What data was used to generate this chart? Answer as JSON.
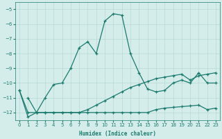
{
  "xlabel": "Humidex (Indice chaleur)",
  "background_color": "#d4edea",
  "grid_color": "#b8d8d4",
  "line_color": "#1a7a6e",
  "xlim": [
    -0.5,
    23.5
  ],
  "ylim": [
    -12.5,
    -4.5
  ],
  "yticks": [
    -12,
    -11,
    -10,
    -9,
    -8,
    -7,
    -6,
    -5
  ],
  "xticks": [
    0,
    1,
    2,
    3,
    4,
    5,
    6,
    7,
    8,
    9,
    10,
    11,
    12,
    13,
    14,
    15,
    16,
    17,
    18,
    19,
    20,
    21,
    22,
    23
  ],
  "series1_x": [
    0,
    1,
    2,
    3,
    4,
    5,
    6,
    7,
    8,
    9,
    10,
    11,
    12,
    13,
    14,
    15,
    16,
    17,
    18,
    19,
    20,
    21,
    22,
    23
  ],
  "series1_y": [
    -10.5,
    -12.3,
    -12.0,
    -11.0,
    -10.1,
    -10.0,
    -9.0,
    -7.6,
    -7.2,
    -8.0,
    -5.8,
    -5.3,
    -5.4,
    -8.0,
    -9.3,
    -10.4,
    -10.6,
    -10.5,
    -10.0,
    -9.8,
    -10.0,
    -9.3,
    -10.0,
    -10.0
  ],
  "series2_x": [
    1,
    2,
    3,
    4,
    5,
    6,
    7,
    8,
    9,
    10,
    11,
    12,
    13,
    14,
    15,
    16,
    17,
    18,
    19,
    20,
    21,
    22,
    23
  ],
  "series2_y": [
    -11.0,
    -12.0,
    -12.0,
    -12.0,
    -12.0,
    -12.0,
    -12.0,
    -11.8,
    -11.5,
    -11.2,
    -10.9,
    -10.6,
    -10.3,
    -10.1,
    -9.9,
    -9.7,
    -9.6,
    -9.5,
    -9.4,
    -9.8,
    -9.5,
    -9.4,
    -9.3
  ],
  "series3_x": [
    0,
    1,
    2,
    3,
    4,
    5,
    6,
    7,
    8,
    9,
    10,
    11,
    12,
    13,
    14,
    15,
    16,
    17,
    18,
    19,
    20,
    21,
    22,
    23
  ],
  "series3_y": [
    -10.5,
    -12.0,
    -12.0,
    -12.0,
    -12.0,
    -12.0,
    -12.0,
    -12.0,
    -12.0,
    -12.0,
    -12.0,
    -12.0,
    -12.0,
    -12.0,
    -12.0,
    -12.0,
    -11.8,
    -11.7,
    -11.65,
    -11.6,
    -11.55,
    -11.5,
    -11.8,
    -11.7
  ]
}
